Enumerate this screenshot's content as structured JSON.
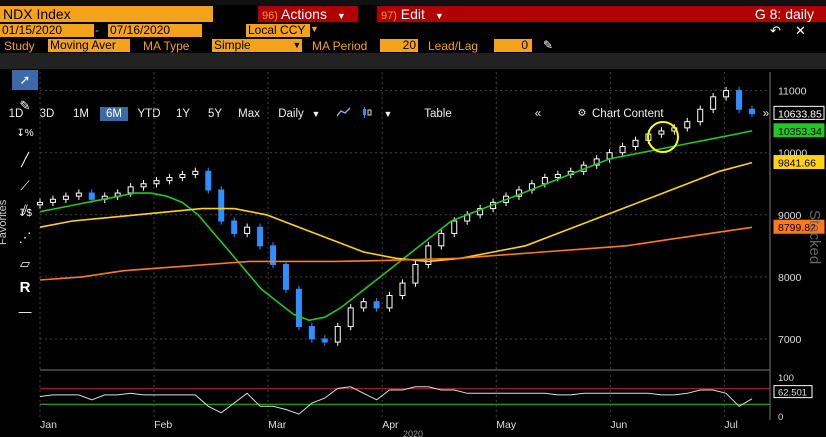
{
  "header": {
    "security": "NDX Index",
    "actions_label": "Actions",
    "actions_num": "96)",
    "edit_label": "Edit",
    "edit_num": "97)",
    "chart_name": "G 8: daily"
  },
  "dates": {
    "start": "01/15/2020",
    "end": "07/16/2020",
    "currency": "Local CCY"
  },
  "study_row": {
    "study_label": "Study",
    "study_value": "Moving Aver",
    "ma_type_label": "MA Type",
    "ma_type_value": "Simple",
    "ma_period_label": "MA Period",
    "ma_period_value": "20",
    "lead_lag_label": "Lead/Lag",
    "lead_lag_value": "0"
  },
  "toolbar": {
    "ranges": [
      "1D",
      "3D",
      "1M",
      "6M",
      "YTD",
      "1Y",
      "5Y",
      "Max"
    ],
    "active_range": "6M",
    "frequency": "Daily",
    "table_label": "Table",
    "chart_content_label": "Chart Content"
  },
  "side": {
    "favorites": "Favorites",
    "stacked": "Stacked"
  },
  "colors": {
    "ma20": "#22c722",
    "ma50": "#ffd21a",
    "ma200": "#ff7a1a",
    "up": "#ffffff",
    "down": "#2e8fff",
    "highlight": "#ffff00",
    "amber": "#f4a21a",
    "red": "#b00000"
  },
  "chart_data": {
    "type": "line",
    "x_labels": [
      "Jan",
      "Feb",
      "Mar",
      "Apr",
      "May",
      "Jun",
      "Jul"
    ],
    "x_year": "2020",
    "y_ticks": [
      7000,
      8000,
      9000,
      10000,
      11000
    ],
    "ylim": [
      6500,
      11300
    ],
    "series": [
      {
        "name": "",
        "values": [
          9200,
          9250,
          9300,
          9350,
          9250,
          9300,
          9350,
          9450,
          9500,
          9550,
          9600,
          9650,
          9700,
          9400,
          8900,
          8700,
          8800,
          8500,
          8200,
          7800,
          7200,
          7000,
          6950,
          7200,
          7500,
          7600,
          7500,
          7700,
          7900,
          8200,
          8500,
          8700,
          8900,
          9000,
          9100,
          9200,
          9300,
          9400,
          9500,
          9600,
          9650,
          9700,
          9800,
          9900,
          10000,
          10100,
          10200,
          10300,
          10350,
          10400,
          10500,
          10700,
          10900,
          11000,
          10700,
          10630
        ]
      },
      {
        "name": "",
        "values": [
          9050,
          9100,
          9150,
          9200,
          9250,
          9300,
          9350,
          9350,
          9300,
          9200,
          9000,
          8700,
          8400,
          8100,
          7800,
          7600,
          7400,
          7300,
          7350,
          7500,
          7700,
          7900,
          8100,
          8300,
          8500,
          8700,
          8900,
          9000,
          9100,
          9200,
          9300,
          9400,
          9500,
          9600,
          9700,
          9800,
          9900,
          9950,
          10000,
          10050,
          10100,
          10150,
          10200,
          10250,
          10300,
          10353
        ]
      },
      {
        "name": "",
        "values": [
          8800,
          8900,
          8950,
          9000,
          9050,
          9100,
          9100,
          9000,
          8800,
          8600,
          8400,
          8300,
          8250,
          8300,
          8400,
          8500,
          8700,
          8900,
          9100,
          9300,
          9500,
          9700,
          9841
        ]
      },
      {
        "name": "",
        "values": [
          7950,
          8000,
          8100,
          8150,
          8200,
          8250,
          8250,
          8250,
          8260,
          8280,
          8300,
          8350,
          8400,
          8450,
          8500,
          8600,
          8700,
          8799
        ]
      }
    ],
    "tags": [
      {
        "value": "10633.85"
      },
      {
        "value": "10353.34"
      },
      {
        "value": "9841.66"
      },
      {
        "value": "8799.82"
      }
    ],
    "sub_panel": {
      "y_ticks": [
        "100",
        "62.501",
        "0"
      ],
      "current": "62.501"
    }
  }
}
